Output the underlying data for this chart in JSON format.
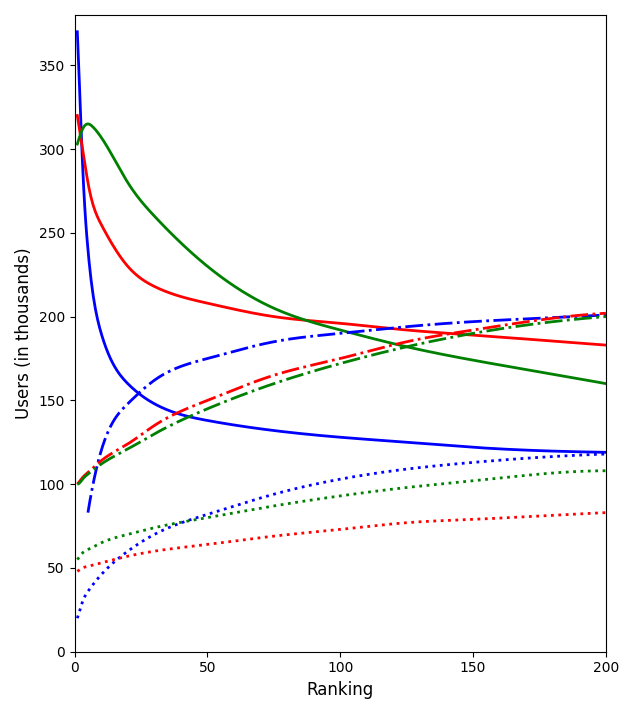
{
  "title": "",
  "xlabel": "Ranking",
  "ylabel": "Users (in thousands)",
  "xlim": [
    0,
    200
  ],
  "ylim": [
    0,
    380
  ],
  "yticks": [
    0,
    50,
    100,
    150,
    200,
    250,
    300,
    350
  ],
  "xticks": [
    0,
    50,
    100,
    150,
    200
  ],
  "colors": {
    "blue": "#0000FF",
    "red": "#FF0000",
    "green": "#008000"
  },
  "solid_blue": {
    "x": [
      1,
      2,
      3,
      5,
      10,
      20,
      30,
      50,
      75,
      100,
      125,
      150,
      175,
      200
    ],
    "y": [
      370,
      330,
      290,
      240,
      190,
      160,
      148,
      138,
      132,
      128,
      125,
      122,
      120,
      119
    ]
  },
  "solid_red": {
    "x": [
      1,
      2,
      3,
      5,
      10,
      20,
      30,
      50,
      75,
      100,
      125,
      150,
      175,
      200
    ],
    "y": [
      320,
      310,
      300,
      280,
      255,
      230,
      218,
      208,
      200,
      196,
      192,
      189,
      186,
      183
    ]
  },
  "solid_green": {
    "x": [
      1,
      2,
      3,
      5,
      7,
      10,
      20,
      30,
      50,
      75,
      100,
      125,
      150,
      175,
      200
    ],
    "y": [
      303,
      308,
      312,
      315,
      313,
      307,
      280,
      260,
      230,
      205,
      192,
      182,
      174,
      167,
      160
    ]
  },
  "dashdot_blue": {
    "x": [
      5,
      10,
      20,
      30,
      50,
      75,
      100,
      125,
      150,
      175,
      200
    ],
    "y": [
      83,
      120,
      148,
      162,
      175,
      185,
      190,
      194,
      197,
      199,
      201
    ]
  },
  "dashdot_red": {
    "x": [
      1,
      2,
      3,
      5,
      10,
      20,
      30,
      50,
      75,
      100,
      125,
      150,
      175,
      200
    ],
    "y": [
      100,
      102,
      104,
      107,
      114,
      124,
      135,
      150,
      165,
      175,
      185,
      192,
      198,
      202
    ]
  },
  "dashdot_green": {
    "x": [
      1,
      2,
      3,
      5,
      10,
      20,
      30,
      50,
      75,
      100,
      125,
      150,
      175,
      200
    ],
    "y": [
      100,
      101,
      103,
      106,
      112,
      121,
      130,
      145,
      160,
      172,
      182,
      190,
      196,
      200
    ]
  },
  "dotted_blue": {
    "x": [
      1,
      2,
      3,
      5,
      10,
      20,
      30,
      50,
      75,
      100,
      125,
      150,
      175,
      200
    ],
    "y": [
      20,
      25,
      30,
      36,
      46,
      60,
      70,
      82,
      94,
      103,
      109,
      113,
      116,
      118
    ]
  },
  "dotted_red": {
    "x": [
      1,
      2,
      3,
      5,
      10,
      20,
      30,
      50,
      75,
      100,
      125,
      150,
      175,
      200
    ],
    "y": [
      48,
      49,
      50,
      51,
      53,
      57,
      60,
      64,
      69,
      73,
      77,
      79,
      81,
      83
    ]
  },
  "dotted_green": {
    "x": [
      1,
      2,
      3,
      5,
      10,
      20,
      30,
      50,
      75,
      100,
      125,
      150,
      175,
      200
    ],
    "y": [
      55,
      57,
      59,
      61,
      65,
      70,
      74,
      80,
      87,
      93,
      98,
      102,
      106,
      108
    ]
  },
  "linewidth": 2.0
}
